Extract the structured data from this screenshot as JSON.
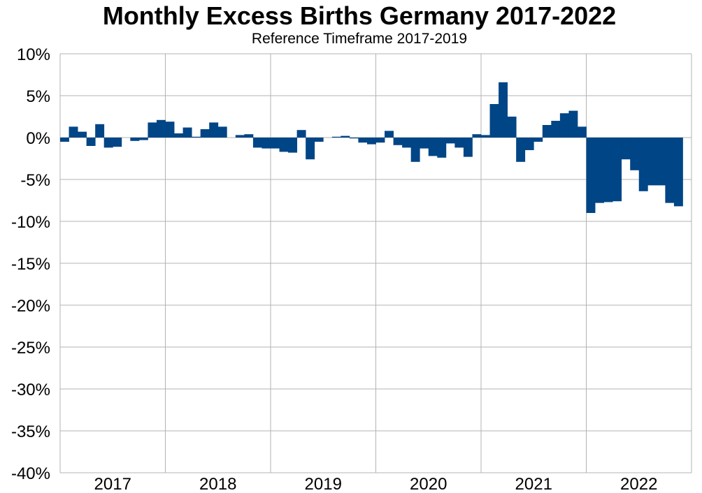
{
  "chart_data": {
    "type": "bar",
    "title": "Monthly Excess Births Germany 2017-2022",
    "subtitle": "Reference Timeframe 2017-2019",
    "xlabel": "",
    "ylabel": "",
    "ylim": [
      -40,
      10
    ],
    "y_ticks": [
      "10%",
      "5%",
      "0%",
      "-5%",
      "-10%",
      "-15%",
      "-20%",
      "-25%",
      "-30%",
      "-35%",
      "-40%"
    ],
    "x_tick_labels": [
      "2017",
      "2018",
      "2019",
      "2020",
      "2021",
      "2022"
    ],
    "grid": true,
    "legend": "none",
    "colors": {
      "bars": "#004586",
      "grid": "#b3b3b3"
    },
    "categories": [
      "2017-01",
      "2017-02",
      "2017-03",
      "2017-04",
      "2017-05",
      "2017-06",
      "2017-07",
      "2017-08",
      "2017-09",
      "2017-10",
      "2017-11",
      "2017-12",
      "2018-01",
      "2018-02",
      "2018-03",
      "2018-04",
      "2018-05",
      "2018-06",
      "2018-07",
      "2018-08",
      "2018-09",
      "2018-10",
      "2018-11",
      "2018-12",
      "2019-01",
      "2019-02",
      "2019-03",
      "2019-04",
      "2019-05",
      "2019-06",
      "2019-07",
      "2019-08",
      "2019-09",
      "2019-10",
      "2019-11",
      "2019-12",
      "2020-01",
      "2020-02",
      "2020-03",
      "2020-04",
      "2020-05",
      "2020-06",
      "2020-07",
      "2020-08",
      "2020-09",
      "2020-10",
      "2020-11",
      "2020-12",
      "2021-01",
      "2021-02",
      "2021-03",
      "2021-04",
      "2021-05",
      "2021-06",
      "2021-07",
      "2021-08",
      "2021-09",
      "2021-10",
      "2021-11",
      "2021-12",
      "2022-01",
      "2022-02",
      "2022-03",
      "2022-04",
      "2022-05",
      "2022-06",
      "2022-07",
      "2022-08",
      "2022-09",
      "2022-10",
      "2022-11",
      "2022-12"
    ],
    "values": [
      -0.5,
      1.3,
      0.7,
      -1.0,
      1.6,
      -1.2,
      -1.1,
      0.0,
      -0.4,
      -0.3,
      1.8,
      2.1,
      1.9,
      0.5,
      1.2,
      0.1,
      1.0,
      1.8,
      1.3,
      0.0,
      0.3,
      0.4,
      -1.2,
      -1.3,
      -1.3,
      -1.7,
      -1.8,
      0.9,
      -2.6,
      -0.5,
      0.0,
      0.1,
      0.2,
      -0.1,
      -0.6,
      -0.8,
      -0.6,
      0.8,
      -0.9,
      -1.2,
      -2.9,
      -1.3,
      -2.2,
      -2.4,
      -0.7,
      -1.2,
      -2.3,
      0.4,
      0.3,
      4.0,
      6.6,
      2.5,
      -2.9,
      -1.5,
      -0.5,
      1.5,
      2.0,
      2.9,
      3.2,
      1.3,
      -9.0,
      -7.8,
      -7.7,
      -7.6,
      -2.6,
      -3.9,
      -6.4,
      -5.7,
      -5.7,
      -7.8,
      -8.2,
      0.0
    ]
  }
}
